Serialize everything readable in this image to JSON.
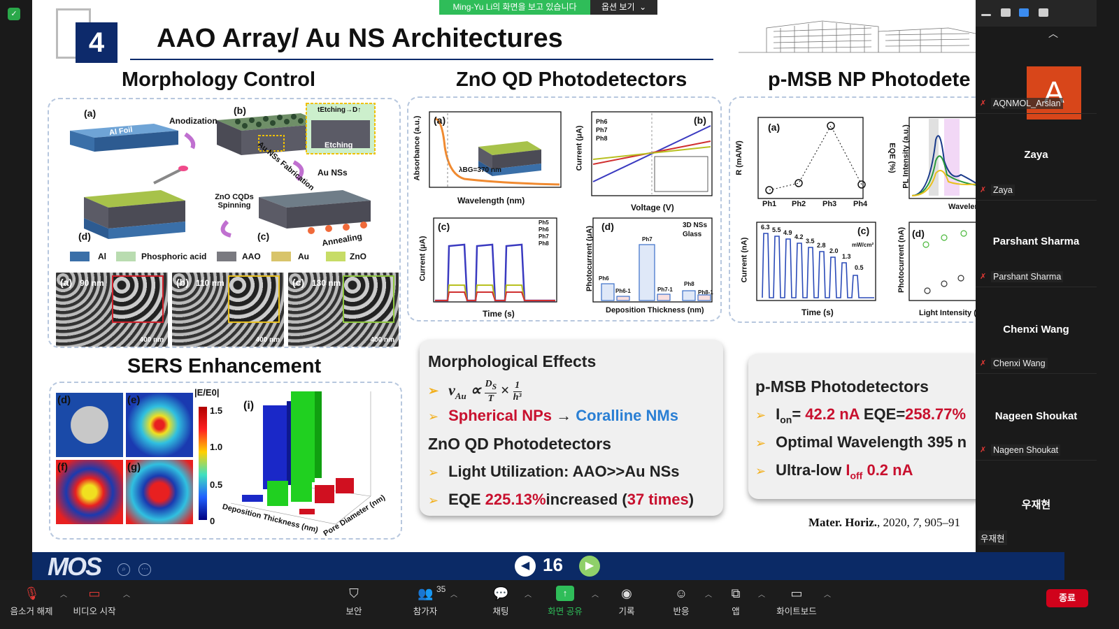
{
  "share_banner": {
    "message": "Ming-Yu Li의 화면을 보고 있습니다",
    "options": "옵션 보기"
  },
  "slide": {
    "number": "4",
    "title": "AAO Array/ Au NS Architectures",
    "sections": {
      "morph": "Morphology Control",
      "zno": "ZnO QD Photodetectors",
      "pmsb": "p-MSB NP Photodete",
      "sers": "SERS Enhancement"
    },
    "morph_labels": {
      "a": "(a)",
      "b": "(b)",
      "c": "(c)",
      "d": "(d)",
      "alfoil": "Al Foil",
      "anod": "Anodization",
      "etching": "Etching",
      "tetch": "tEtching→D↑",
      "aufab": "Au NSs Fabrication",
      "auns": "Au NSs",
      "znocqd": "ZnO CQDs Spinning",
      "anneal": "Annealing",
      "legend": [
        "Al",
        "Phosphoric acid",
        "AAO",
        "Au",
        "ZnO"
      ],
      "sem": [
        {
          "tag": "(a)",
          "size": "90 nm",
          "scale": "400 nm"
        },
        {
          "tag": "(b)",
          "size": "110 nm",
          "scale": "400 nm"
        },
        {
          "tag": "(c)",
          "size": "130 nm",
          "scale": "400 nm"
        }
      ]
    },
    "zno_labels": {
      "absorb": "Absorbance (a.u.)",
      "wavelength": "Wavelength (nm)",
      "lambda": "λBG=370 nm",
      "current": "Current (μA)",
      "voltage": "Voltage (V)",
      "time": "Time (s)",
      "photocurrent": "Photocurrent (μA)",
      "depth": "Deposition Thickness (nm)",
      "legend_b": [
        "Ph6",
        "Ph7",
        "Ph8"
      ],
      "legend_c": [
        "Ph5",
        "Ph6",
        "Ph7",
        "Ph8"
      ],
      "legend_d": [
        "3D NSs",
        "Glass"
      ],
      "bars": [
        "Ph6",
        "Ph6-1",
        "Ph7",
        "Ph7-1",
        "Ph8",
        "Ph8-1"
      ]
    },
    "pmsb_labels": {
      "r": "R (mA/W)",
      "eqe": "EQE (%)",
      "ph": [
        "Ph1",
        "Ph2",
        "Ph3",
        "Ph4"
      ],
      "pl": "PL Intensity (a.u.)",
      "wl": "Wavelength",
      "current": "Current (nA)",
      "time": "Time (s)",
      "photo": "Photocurrent (nA)",
      "light": "Light Intensity (",
      "steps": [
        "6.3",
        "5.5",
        "4.9",
        "4.2",
        "3.5",
        "2.8",
        "2.0",
        "1.3",
        "0.5"
      ],
      "unit": "mW/cm²"
    },
    "sers_labels": {
      "panels": [
        "(d)",
        "(e)",
        "(f)",
        "(g)"
      ],
      "cb": "|E/E0|",
      "ticks": [
        "1.5",
        "1.0",
        "0.5",
        "0"
      ],
      "i": "(i)",
      "x": "Deposition Thickness (nm)",
      "y": "Pore Diameter (nm)"
    },
    "box1": {
      "heading1": "Morphological Effects",
      "formula": "ν",
      "l2a": "Spherical NPs",
      "l2b": " → ",
      "l2c": "Coralline NMs",
      "heading2": "ZnO QD Photodetectors",
      "l3": "Light Utilization: AAO>>Au NSs",
      "l4a": "EQE ",
      "l4b": "225.13%",
      "l4c": "increased (",
      "l4d": "37 times",
      "l4e": ")"
    },
    "box2": {
      "heading": "p-MSB Photodetectors",
      "l1a": "I",
      "l1sub": "on",
      "l1b": "= ",
      "l1c": "42.2 nA",
      "l1d": " EQE=",
      "l1e": "258.77%",
      "l2": "Optimal Wavelength 395 n",
      "l3a": "Ultra-low ",
      "l3b": "I",
      "l3sub": "off",
      "l3c": " 0.2 nA"
    },
    "reference": {
      "journal": "Mater. Horiz.",
      "rest": ", 2020, ",
      "vol": "7",
      "pages": ", 905–91"
    },
    "page": "16",
    "logo": "MOS"
  },
  "participants": [
    {
      "big": "",
      "small": "AQNMOL_Arslan",
      "avatar": "A"
    },
    {
      "big": "Zaya",
      "small": "Zaya"
    },
    {
      "big": "Parshant Sharma",
      "small": "Parshant Sharma"
    },
    {
      "big": "Chenxi Wang",
      "small": "Chenxi Wang"
    },
    {
      "big": "Nageen Shoukat",
      "small": "Nageen Shoukat"
    },
    {
      "big": "우재현",
      "small": "우재현"
    }
  ],
  "toolbar": {
    "mute": "음소거 해제",
    "video": "비디오 시작",
    "security": "보안",
    "participants": "참가자",
    "count": "35",
    "chat": "채팅",
    "share": "화면 공유",
    "record": "기록",
    "reactions": "반응",
    "apps": "앱",
    "whiteboard": "화이트보드",
    "end": "종료"
  }
}
